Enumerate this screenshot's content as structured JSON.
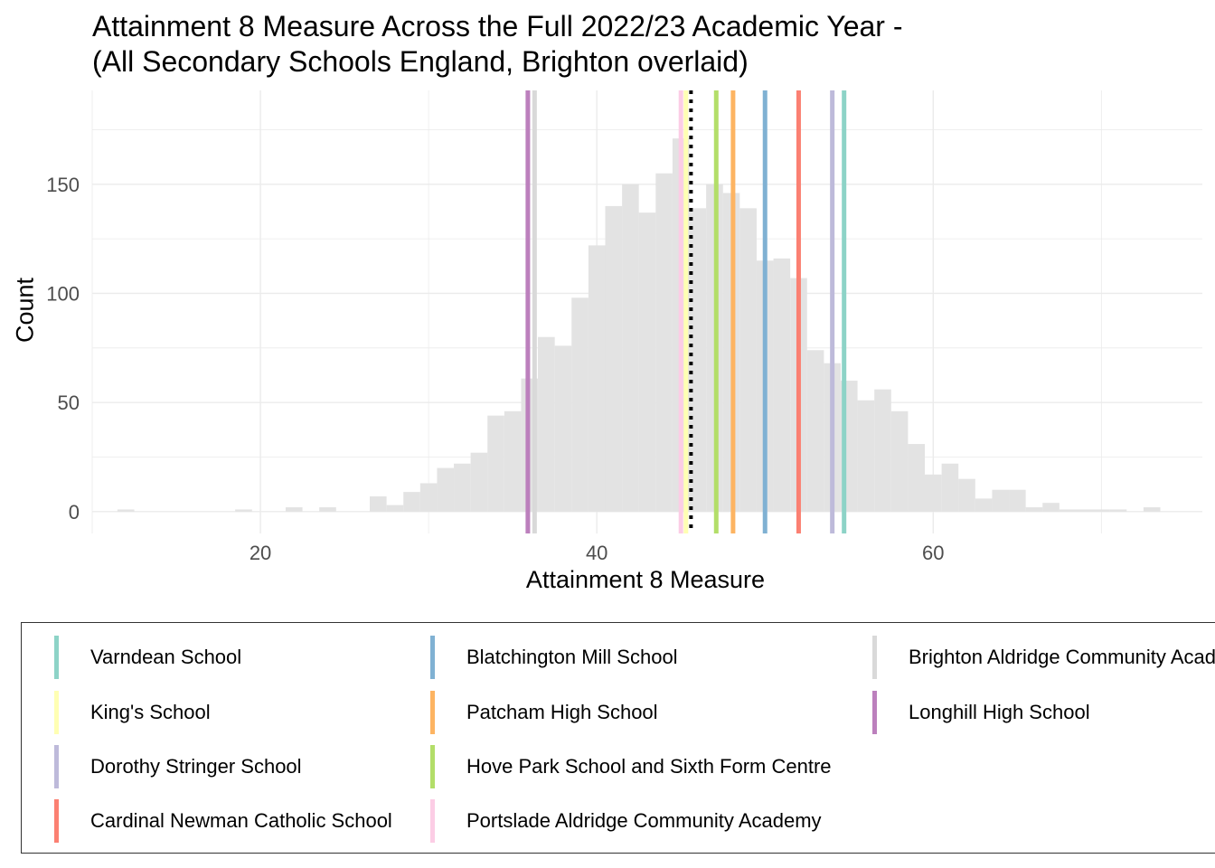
{
  "chart_data": {
    "type": "histogram",
    "title": "Attainment 8 Measure Across the Full 2022/23 Academic Year -",
    "subtitle": "(All Secondary Schools England, Brighton overlaid)",
    "xlabel": "Attainment 8 Measure",
    "ylabel": "Count",
    "xlim": [
      10,
      76
    ],
    "ylim": [
      -10,
      193
    ],
    "x_ticks": [
      20,
      40,
      60
    ],
    "y_ticks": [
      0,
      50,
      100,
      150
    ],
    "grid": true,
    "bin_width": 1,
    "bins": [
      {
        "x": 12,
        "count": 1
      },
      {
        "x": 19,
        "count": 1
      },
      {
        "x": 22,
        "count": 2
      },
      {
        "x": 24,
        "count": 2
      },
      {
        "x": 27,
        "count": 7
      },
      {
        "x": 28,
        "count": 3
      },
      {
        "x": 29,
        "count": 9
      },
      {
        "x": 30,
        "count": 13
      },
      {
        "x": 31,
        "count": 20
      },
      {
        "x": 32,
        "count": 22
      },
      {
        "x": 33,
        "count": 27
      },
      {
        "x": 34,
        "count": 44
      },
      {
        "x": 35,
        "count": 46
      },
      {
        "x": 36,
        "count": 61
      },
      {
        "x": 37,
        "count": 80
      },
      {
        "x": 38,
        "count": 76
      },
      {
        "x": 39,
        "count": 98
      },
      {
        "x": 40,
        "count": 122
      },
      {
        "x": 41,
        "count": 140
      },
      {
        "x": 42,
        "count": 150
      },
      {
        "x": 43,
        "count": 137
      },
      {
        "x": 44,
        "count": 155
      },
      {
        "x": 45,
        "count": 171
      },
      {
        "x": 46,
        "count": 139
      },
      {
        "x": 47,
        "count": 150
      },
      {
        "x": 48,
        "count": 146
      },
      {
        "x": 49,
        "count": 139
      },
      {
        "x": 50,
        "count": 115
      },
      {
        "x": 51,
        "count": 116
      },
      {
        "x": 52,
        "count": 107
      },
      {
        "x": 53,
        "count": 74
      },
      {
        "x": 54,
        "count": 68
      },
      {
        "x": 55,
        "count": 60
      },
      {
        "x": 56,
        "count": 51
      },
      {
        "x": 57,
        "count": 56
      },
      {
        "x": 58,
        "count": 46
      },
      {
        "x": 59,
        "count": 31
      },
      {
        "x": 60,
        "count": 17
      },
      {
        "x": 61,
        "count": 22
      },
      {
        "x": 62,
        "count": 15
      },
      {
        "x": 63,
        "count": 6
      },
      {
        "x": 64,
        "count": 10
      },
      {
        "x": 65,
        "count": 10
      },
      {
        "x": 66,
        "count": 2
      },
      {
        "x": 67,
        "count": 4
      },
      {
        "x": 68,
        "count": 1
      },
      {
        "x": 69,
        "count": 1
      },
      {
        "x": 70,
        "count": 1
      },
      {
        "x": 71,
        "count": 1
      },
      {
        "x": 73,
        "count": 2
      }
    ],
    "mean_line": {
      "x": 45.6,
      "style": "dotted",
      "color": "#000000"
    },
    "schools": [
      {
        "name": "Varndean School",
        "x": 54.7,
        "color": "#8DD3C7"
      },
      {
        "name": "King's School",
        "x": 45.3,
        "color": "#FFFFB3"
      },
      {
        "name": "Dorothy Stringer School",
        "x": 54.0,
        "color": "#BEBADA"
      },
      {
        "name": "Cardinal Newman Catholic School",
        "x": 52.0,
        "color": "#FB8072"
      },
      {
        "name": "Blatchington Mill School",
        "x": 50.0,
        "color": "#80B1D3"
      },
      {
        "name": "Patcham High School",
        "x": 48.1,
        "color": "#FDB462"
      },
      {
        "name": "Hove Park School and Sixth Form Centre",
        "x": 47.1,
        "color": "#B3DE69"
      },
      {
        "name": "Portslade Aldridge Community Academy",
        "x": 45.0,
        "color": "#FCCDE5"
      },
      {
        "name": "Brighton Aldridge Community Academy",
        "x": 36.3,
        "color": "#D9D9D9"
      },
      {
        "name": "Longhill High School",
        "x": 35.9,
        "color": "#BC80BD"
      }
    ],
    "legend": "bottom"
  }
}
